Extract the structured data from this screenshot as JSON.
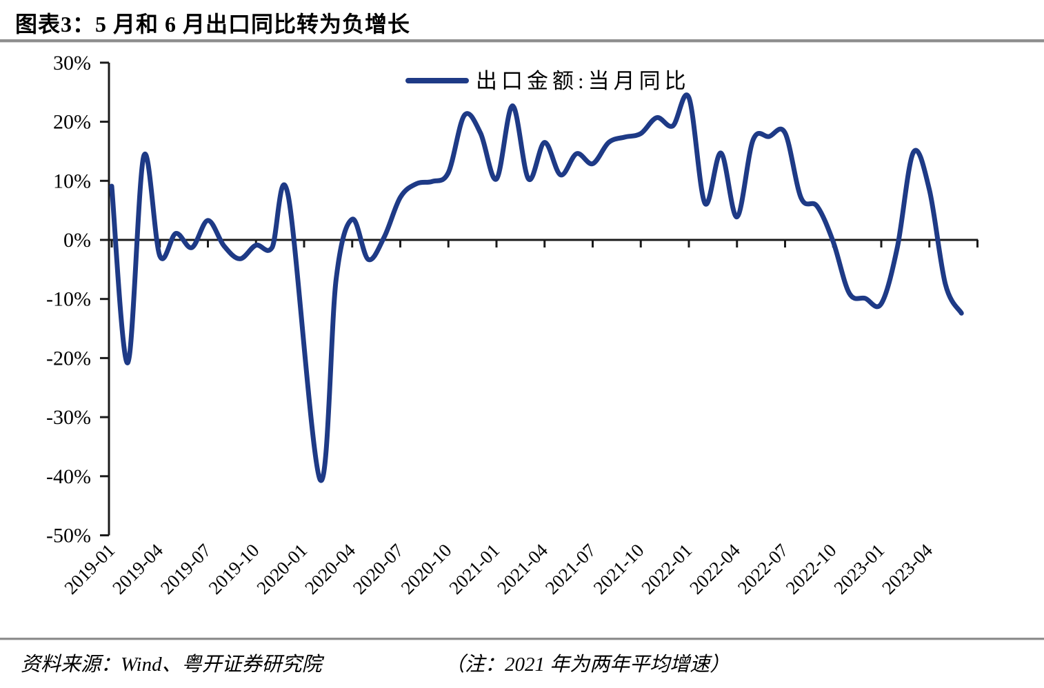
{
  "title": "图表3：5 月和 6 月出口同比转为负增长",
  "legend": {
    "label": "出口金额:当月同比"
  },
  "footer": {
    "source": "资料来源：Wind、粤开证券研究院",
    "note": "（注：2021 年为两年平均增速）"
  },
  "colors": {
    "line": "#1e3a86",
    "axis": "#1a1a1a",
    "text": "#000000",
    "rule": "#8f8f8f"
  },
  "chart_data": {
    "type": "line",
    "title": "图表3：5 月和 6 月出口同比转为负增长",
    "series_name": "出口金额:当月同比",
    "unit": "%",
    "legend_position": "top-center",
    "grid": false,
    "ylim": [
      -50,
      30
    ],
    "y_ticks": [
      30,
      20,
      10,
      0,
      -10,
      -20,
      -30,
      -40,
      -50
    ],
    "y_tick_suffix": "%",
    "x_tick_labels": [
      "2019-01",
      "2019-04",
      "2019-07",
      "2019-10",
      "2020-01",
      "2020-04",
      "2020-07",
      "2020-10",
      "2021-01",
      "2021-04",
      "2021-07",
      "2021-10",
      "2022-01",
      "2022-04",
      "2022-07",
      "2022-10",
      "2023-01",
      "2023-04"
    ],
    "x_tick_every_months": 3,
    "annotation": "2021 年为两年平均增速（两年平均增速 used for 2021 values）",
    "months": [
      "2019-01",
      "2019-02",
      "2019-03",
      "2019-04",
      "2019-05",
      "2019-06",
      "2019-07",
      "2019-08",
      "2019-09",
      "2019-10",
      "2019-11",
      "2019-12",
      "2020-01",
      "2020-02",
      "2020-03",
      "2020-04",
      "2020-05",
      "2020-06",
      "2020-07",
      "2020-08",
      "2020-09",
      "2020-10",
      "2020-11",
      "2020-12",
      "2021-01",
      "2021-02",
      "2021-03",
      "2021-04",
      "2021-05",
      "2021-06",
      "2021-07",
      "2021-08",
      "2021-09",
      "2021-10",
      "2021-11",
      "2021-12",
      "2022-01",
      "2022-02",
      "2022-03",
      "2022-04",
      "2022-05",
      "2022-06",
      "2022-07",
      "2022-08",
      "2022-09",
      "2022-10",
      "2022-11",
      "2022-12",
      "2023-01",
      "2023-02",
      "2023-03",
      "2023-04",
      "2023-05",
      "2023-06"
    ],
    "values": [
      9.1,
      -20.8,
      14.2,
      -2.7,
      1.1,
      -1.3,
      3.3,
      -1.0,
      -3.2,
      -0.9,
      -1.3,
      7.6,
      null,
      -40.6,
      -6.6,
      3.5,
      -3.3,
      0.5,
      7.2,
      9.5,
      9.9,
      11.4,
      21.1,
      18.1,
      10.3,
      22.7,
      10.3,
      16.5,
      11.0,
      14.6,
      12.9,
      16.5,
      17.4,
      18.0,
      20.7,
      19.3,
      24.1,
      6.2,
      14.7,
      3.9,
      16.9,
      17.5,
      18.1,
      7.1,
      5.7,
      -0.3,
      -9.0,
      -9.9,
      -10.8,
      -1.3,
      14.8,
      8.5,
      -7.5,
      -12.4
    ]
  }
}
